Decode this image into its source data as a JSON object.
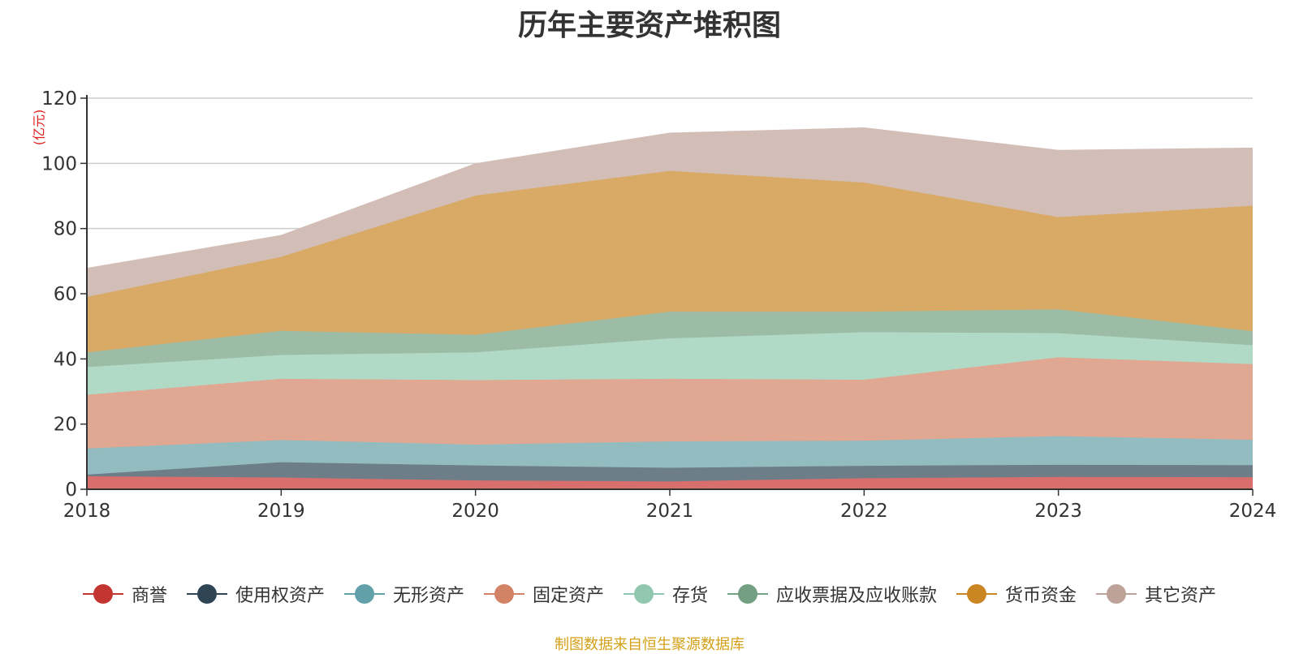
{
  "chart_data": {
    "type": "area",
    "stacked": true,
    "title": "历年主要资产堆积图",
    "ylabel": "(亿元)",
    "xlabel": "",
    "x": [
      "2018",
      "2019",
      "2020",
      "2021",
      "2022",
      "2023",
      "2024"
    ],
    "ylim": [
      0,
      120
    ],
    "yticks": [
      0,
      20,
      40,
      60,
      80,
      100,
      120
    ],
    "grid": true,
    "legend_position": "bottom",
    "series": [
      {
        "name": "商誉",
        "color": "#c23531",
        "fill": "#d86f6d",
        "values": [
          4,
          3.6,
          2.7,
          2.4,
          3.4,
          3.8,
          3.7
        ]
      },
      {
        "name": "使用权资产",
        "color": "#2f4554",
        "fill": "#6e7e88",
        "values": [
          0.5,
          4.7,
          4.6,
          4.2,
          3.8,
          3.7,
          3.7
        ]
      },
      {
        "name": "无形资产",
        "color": "#61a0a8",
        "fill": "#93bcc1",
        "values": [
          8,
          6.8,
          6.4,
          8.1,
          7.7,
          8.8,
          7.8
        ]
      },
      {
        "name": "固定资产",
        "color": "#d48265",
        "fill": "#e0a792",
        "values": [
          16.5,
          18.8,
          19.8,
          19.2,
          18.7,
          24.2,
          23.2
        ]
      },
      {
        "name": "存货",
        "color": "#91c7ae",
        "fill": "#b0dac6",
        "values": [
          8.5,
          7.3,
          8.5,
          12.4,
          14.6,
          7.4,
          5.8
        ]
      },
      {
        "name": "应收票据及应收账款",
        "color": "#749f83",
        "fill": "#9dbca6",
        "values": [
          4.5,
          7.4,
          5.4,
          8.2,
          6.3,
          7.3,
          4.3
        ]
      },
      {
        "name": "货币资金",
        "color": "#ca8622",
        "fill": "#d9aa65",
        "values": [
          17,
          22.7,
          42.7,
          43.2,
          39.6,
          28.3,
          38.5
        ]
      },
      {
        "name": "其它资产",
        "color": "#bda29a",
        "fill": "#d2bdb7",
        "values": [
          8.8,
          6.6,
          9.8,
          11.6,
          16.8,
          20.5,
          17.7
        ]
      }
    ]
  },
  "source_note": "制图数据来自恒生聚源数据库"
}
